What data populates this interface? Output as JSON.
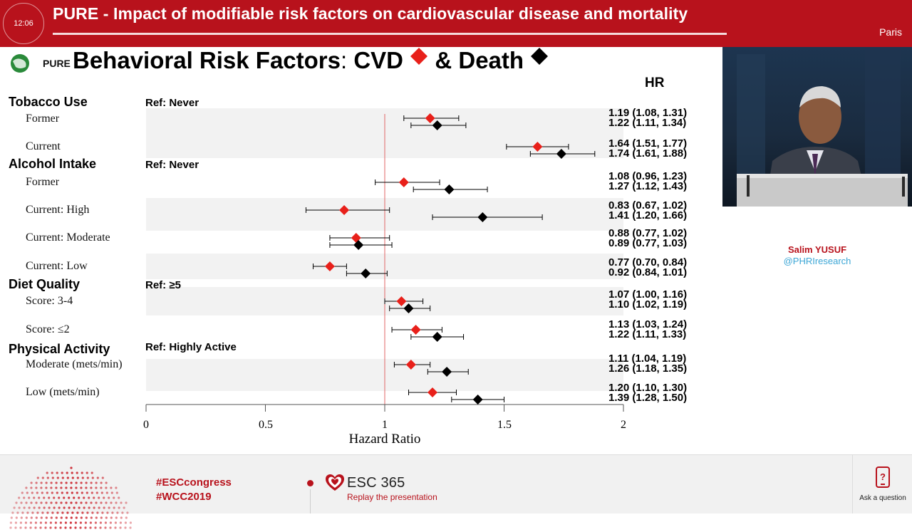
{
  "header": {
    "clock": "12:06",
    "title": "PURE - Impact of modifiable risk factors on cardiovascular disease and mortality",
    "city": "Paris"
  },
  "slide": {
    "logo_text": "PURE",
    "title_main": "Behavioral Risk Factors",
    "title_colon": ":",
    "title_cvd": "CVD",
    "title_death": "& Death",
    "hr_header": "HR",
    "categories": [
      {
        "label": "Tobacco Use",
        "ref": "Ref: Never"
      },
      {
        "label": "Alcohol Intake",
        "ref": "Ref: Never"
      },
      {
        "label": "Diet Quality",
        "ref": "Ref: ≥5"
      },
      {
        "label": "Physical Activity",
        "ref": "Ref: Highly Active"
      }
    ],
    "rows": [
      {
        "label": "Former",
        "cvd_text": "1.19 (1.08, 1.31)",
        "death_text": "1.22 (1.11, 1.34)"
      },
      {
        "label": "Current",
        "cvd_text": "1.64 (1.51, 1.77)",
        "death_text": "1.74 (1.61, 1.88)"
      },
      {
        "label": "Former",
        "cvd_text": "1.08 (0.96, 1.23)",
        "death_text": "1.27 (1.12, 1.43)"
      },
      {
        "label": "Current: High",
        "cvd_text": "0.83 (0.67, 1.02)",
        "death_text": "1.41 (1.20, 1.66)"
      },
      {
        "label": "Current: Moderate",
        "cvd_text": "0.88 (0.77, 1.02)",
        "death_text": "0.89 (0.77, 1.03)"
      },
      {
        "label": "Current: Low",
        "cvd_text": "0.77 (0.70, 0.84)",
        "death_text": "0.92 (0.84, 1.01)"
      },
      {
        "label": "Score: 3-4",
        "cvd_text": "1.07 (1.00, 1.16)",
        "death_text": "1.10 (1.02, 1.19)"
      },
      {
        "label": "Score: ≤2",
        "cvd_text": "1.13 (1.03, 1.24)",
        "death_text": "1.22 (1.11, 1.33)"
      },
      {
        "label": "Moderate (mets/min)",
        "cvd_text": "1.11 (1.04, 1.19)",
        "death_text": "1.26 (1.18, 1.35)"
      },
      {
        "label": "Low (mets/min)",
        "cvd_text": "1.20 (1.10, 1.30)",
        "death_text": "1.39 (1.28, 1.50)"
      }
    ],
    "axis_title": "Hazard Ratio",
    "axis_ticks": [
      "0",
      "0.5",
      "1",
      "1.5",
      "2"
    ]
  },
  "chart_data": {
    "type": "scatter",
    "title": "Behavioral Risk Factors: CVD & Death",
    "xlabel": "Hazard Ratio",
    "xlim": [
      0,
      2
    ],
    "xticks": [
      0,
      0.5,
      1,
      1.5,
      2
    ],
    "reference_line": 1,
    "categories": [
      "Former",
      "Current",
      "Former",
      "Current: High",
      "Current: Moderate",
      "Current: Low",
      "Score: 3-4",
      "Score: ≤2",
      "Moderate (mets/min)",
      "Low (mets/min)"
    ],
    "series": [
      {
        "name": "CVD",
        "color": "#e8201a",
        "marker": "diamond",
        "values": [
          1.19,
          1.64,
          1.08,
          0.83,
          0.88,
          0.77,
          1.07,
          1.13,
          1.11,
          1.2
        ],
        "lower": [
          1.08,
          1.51,
          0.96,
          0.67,
          0.77,
          0.7,
          1.0,
          1.03,
          1.04,
          1.1
        ],
        "upper": [
          1.31,
          1.77,
          1.23,
          1.02,
          1.02,
          0.84,
          1.16,
          1.24,
          1.19,
          1.3
        ]
      },
      {
        "name": "Death",
        "color": "#000000",
        "marker": "diamond",
        "values": [
          1.22,
          1.74,
          1.27,
          1.41,
          0.89,
          0.92,
          1.1,
          1.22,
          1.26,
          1.39
        ],
        "lower": [
          1.11,
          1.61,
          1.12,
          1.2,
          0.77,
          0.84,
          1.02,
          1.11,
          1.18,
          1.28
        ],
        "upper": [
          1.34,
          1.88,
          1.43,
          1.66,
          1.03,
          1.01,
          1.19,
          1.33,
          1.35,
          1.5
        ]
      }
    ]
  },
  "speaker": {
    "name": "Salim YUSUF",
    "handle": "@PHRIresearch"
  },
  "footer": {
    "tag1": "#ESCcongress",
    "tag2": "#WCC2019",
    "esc_title": "ESC 365",
    "esc_sub": "Replay the presentation",
    "ask": "Ask a question"
  },
  "colors": {
    "brand_red": "#b8121c",
    "cvd_red": "#e8201a",
    "handle_blue": "#3ba6d6"
  }
}
